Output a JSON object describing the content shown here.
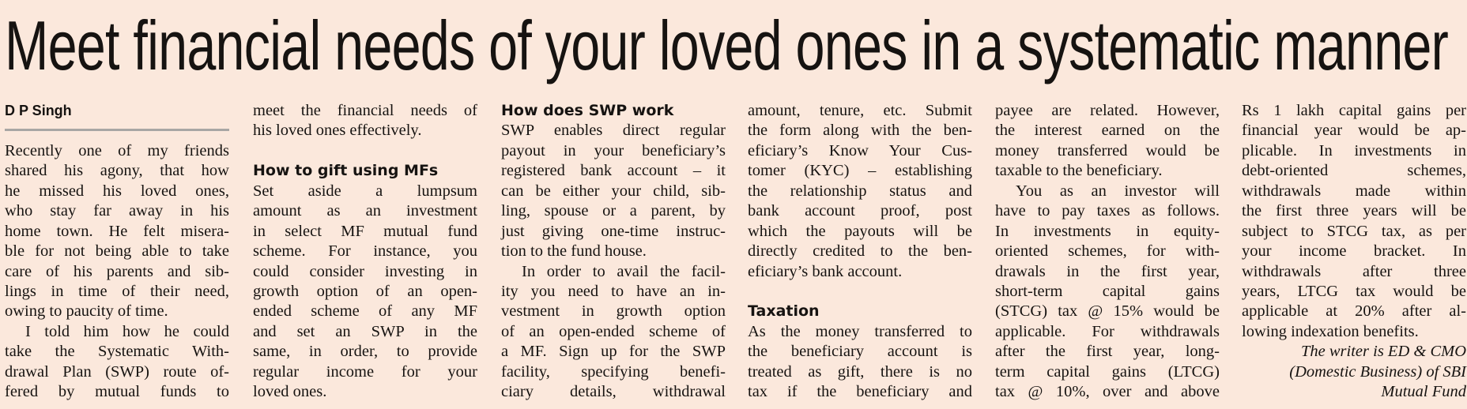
{
  "headline": "Meet financial needs of your loved ones in a systematic manner",
  "byline": "D P Singh",
  "colors": {
    "background": "#fbe8dc",
    "text": "#161311",
    "byline_rule": "#a8a6a4"
  },
  "columns": [
    {
      "blocks": [
        {
          "type": "byline",
          "lines": [
            "D P Singh"
          ]
        },
        {
          "type": "rule"
        },
        {
          "type": "p",
          "lines": [
            "Recently one of my friends",
            "shared his agony, that how",
            "he missed his loved ones,",
            "who stay far away in his",
            "home town. He felt misera-",
            "ble for not being able to take",
            "care of his parents and sib-",
            "lings in time of their need,",
            "owing to paucity of time."
          ]
        },
        {
          "type": "p",
          "indent": true,
          "continues": true,
          "lines": [
            "I told him how he could",
            "take the Systematic With-",
            "drawal Plan (SWP) route of-",
            "fered by mutual funds to"
          ]
        }
      ]
    },
    {
      "blocks": [
        {
          "type": "p",
          "lines": [
            "meet the financial needs of",
            "his loved ones effectively."
          ]
        },
        {
          "type": "blank"
        },
        {
          "type": "heading",
          "lines": [
            "How to gift using MFs"
          ]
        },
        {
          "type": "p",
          "lines": [
            "Set aside a lumpsum",
            "amount as an investment",
            "in select MF mutual fund",
            "scheme. For instance, you",
            "could consider investing in",
            "growth option of an open-",
            "ended scheme of any MF",
            "and set an SWP in the",
            "same, in order, to provide",
            "regular income for your",
            "loved ones."
          ]
        }
      ]
    },
    {
      "blocks": [
        {
          "type": "heading",
          "lines": [
            "How does SWP work"
          ]
        },
        {
          "type": "p",
          "lines": [
            "SWP enables direct regular",
            "payout in your beneficiary’s",
            "registered bank account – it",
            "can be either your child, sib-",
            "ling, spouse or a parent, by",
            "just giving one-time instruc-",
            "tion to the fund house."
          ]
        },
        {
          "type": "p",
          "indent": true,
          "continues": true,
          "lines": [
            "In order to avail the facil-",
            "ity you need to have an in-",
            "vestment in growth option",
            "of an open-ended scheme of",
            "a MF. Sign up for the SWP",
            "facility, specifying benefi-",
            "ciary details, withdrawal"
          ]
        }
      ]
    },
    {
      "blocks": [
        {
          "type": "p",
          "lines": [
            "amount, tenure, etc. Submit",
            "the form along with the ben-",
            "eficiary’s Know Your Cus-",
            "tomer (KYC) – establishing",
            "the relationship status and",
            "bank account proof, post",
            "which the payouts will be",
            "directly credited to the ben-",
            "eficiary’s bank account."
          ]
        },
        {
          "type": "blank"
        },
        {
          "type": "heading",
          "lines": [
            "Taxation"
          ]
        },
        {
          "type": "p",
          "continues": true,
          "lines": [
            "As the money transferred to",
            "the beneficiary account is",
            "treated as gift, there is no",
            "tax if the beneficiary and"
          ]
        }
      ]
    },
    {
      "blocks": [
        {
          "type": "p",
          "lines": [
            "payee are related. However,",
            "the interest earned on the",
            "money transferred would be",
            "taxable to the beneficiary."
          ]
        },
        {
          "type": "p",
          "indent": true,
          "continues": true,
          "lines": [
            "You as an investor will",
            "have to pay taxes as follows.",
            "In investments in equity-",
            "oriented schemes, for with-",
            "drawals in the first year,",
            "short-term capital gains",
            "(STCG) tax @ 15% would be",
            "applicable. For withdrawals",
            "after the first year, long-",
            "term capital gains (LTCG)",
            "tax @ 10%, over and above"
          ]
        }
      ]
    },
    {
      "blocks": [
        {
          "type": "p",
          "lines": [
            "Rs 1 lakh capital gains per",
            "financial year would be ap-",
            "plicable. In investments in",
            "debt-oriented schemes,",
            "withdrawals made within",
            "the first three years will be",
            "subject to STCG tax, as per",
            "your income bracket. In",
            "withdrawals after three",
            "years, LTCG tax would be",
            "applicable at 20% after al-",
            "lowing indexation benefits."
          ]
        },
        {
          "type": "signature",
          "lines": [
            "The writer is ED & CMO",
            "(Domestic Business) of SBI",
            "Mutual Fund"
          ]
        }
      ]
    }
  ]
}
